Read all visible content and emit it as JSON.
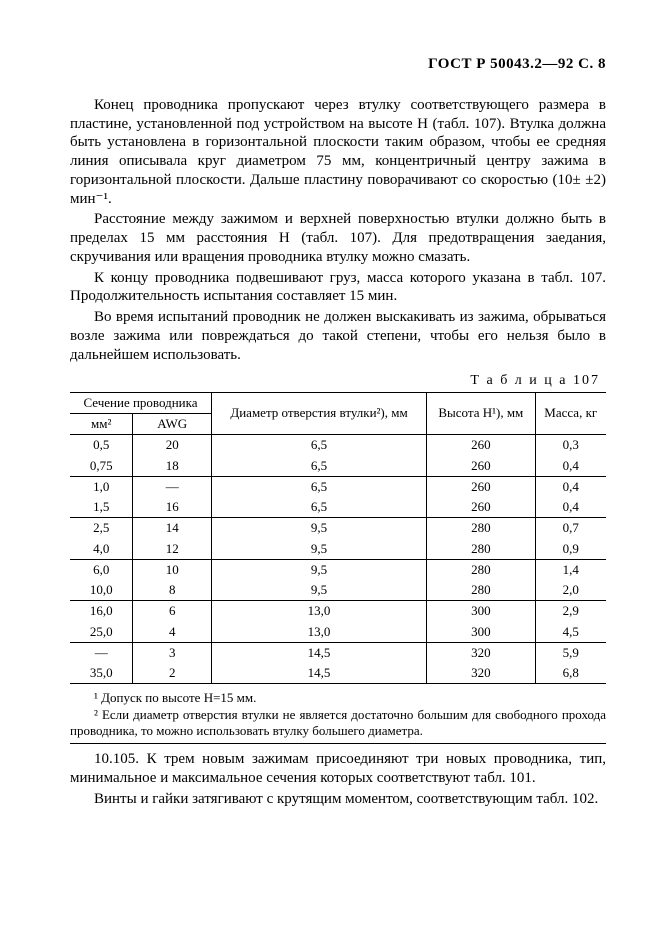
{
  "header": "ГОСТ Р 50043.2—92 С. 8",
  "paragraphs": {
    "p1": "Конец проводника пропускают через втулку соответствующего размера в пластине, установленной под устройством на высоте H (табл. 107). Втулка должна быть установлена в горизонтальной плоскости таким образом, чтобы ее средняя линия описывала круг диаметром 75 мм, концентричный центру зажима в горизонтальной плоскости. Дальше пластину поворачивают со скоростью (10± ±2) мин⁻¹.",
    "p2": "Расстояние между зажимом и верхней поверхностью втулки должно быть в пределах 15 мм расстояния H (табл. 107). Для предотвращения заедания, скручивания или вращения проводника втулку можно смазать.",
    "p3": "К концу проводника подвешивают груз, масса которого указана в табл. 107. Продолжительность испытания составляет 15 мин.",
    "p4": "Во время испытаний проводник не должен выскакивать из зажима, обрываться возле зажима или повреждаться до такой степени, чтобы его нельзя было в дальнейшем использовать."
  },
  "table_caption": "Т а б л и ц а   107",
  "table": {
    "head": {
      "section_group": "Сечение проводника",
      "mm2": "мм²",
      "awg": "AWG",
      "dia": "Диаметр отвер­стия втулки²), мм",
      "height": "Высота H¹), мм",
      "mass": "Масса, кг"
    },
    "groups": [
      {
        "rows": [
          {
            "mm2": "0,5",
            "awg": "20",
            "dia": "6,5",
            "h": "260",
            "m": "0,3"
          },
          {
            "mm2": "0,75",
            "awg": "18",
            "dia": "6,5",
            "h": "260",
            "m": "0,4"
          }
        ]
      },
      {
        "rows": [
          {
            "mm2": "1,0",
            "awg": "—",
            "dia": "6,5",
            "h": "260",
            "m": "0,4"
          },
          {
            "mm2": "1,5",
            "awg": "16",
            "dia": "6,5",
            "h": "260",
            "m": "0,4"
          }
        ]
      },
      {
        "rows": [
          {
            "mm2": "2,5",
            "awg": "14",
            "dia": "9,5",
            "h": "280",
            "m": "0,7"
          },
          {
            "mm2": "4,0",
            "awg": "12",
            "dia": "9,5",
            "h": "280",
            "m": "0,9"
          }
        ]
      },
      {
        "rows": [
          {
            "mm2": "6,0",
            "awg": "10",
            "dia": "9,5",
            "h": "280",
            "m": "1,4"
          },
          {
            "mm2": "10,0",
            "awg": "8",
            "dia": "9,5",
            "h": "280",
            "m": "2,0"
          }
        ]
      },
      {
        "rows": [
          {
            "mm2": "16,0",
            "awg": "6",
            "dia": "13,0",
            "h": "300",
            "m": "2,9"
          },
          {
            "mm2": "25,0",
            "awg": "4",
            "dia": "13,0",
            "h": "300",
            "m": "4,5"
          }
        ]
      },
      {
        "rows": [
          {
            "mm2": "—",
            "awg": "3",
            "dia": "14,5",
            "h": "320",
            "m": "5,9"
          },
          {
            "mm2": "35,0",
            "awg": "2",
            "dia": "14,5",
            "h": "320",
            "m": "6,8"
          }
        ]
      }
    ]
  },
  "notes": {
    "n1": "¹ Допуск по высоте H=15 мм.",
    "n2": "² Если диаметр отверстия втулки не является достаточно большим для сво­бодного прохода проводника, то можно использовать втулку большего диаметра."
  },
  "section": {
    "s1": "10.105. К трем новым зажимам присоединяют три новых про­водника, тип, минимальное и максимальное сечения которых соот­ветствуют табл. 101.",
    "s2": "Винты и гайки затягивают с крутящим моментом, соответству­ющим табл. 102."
  }
}
